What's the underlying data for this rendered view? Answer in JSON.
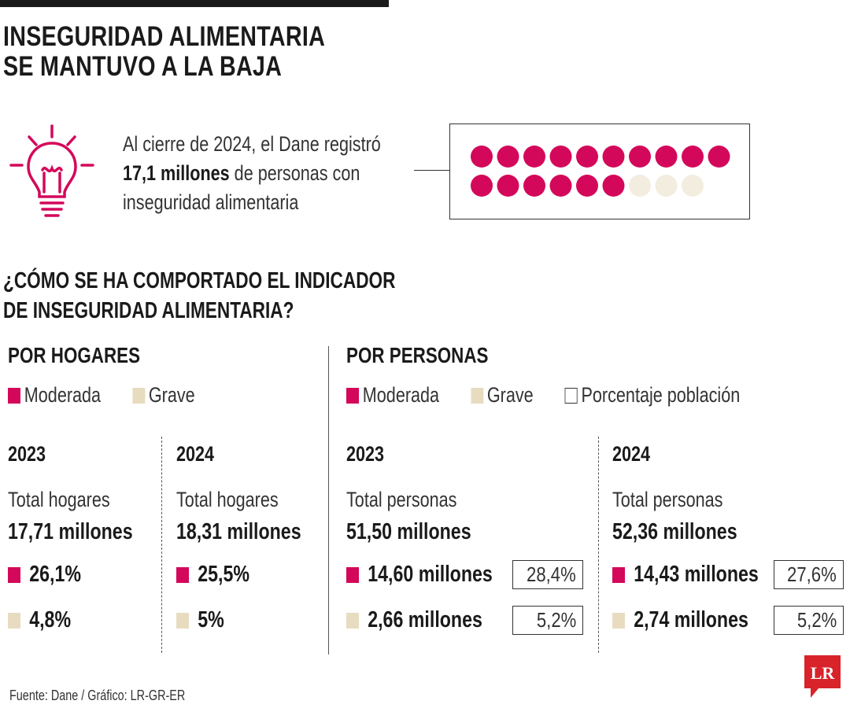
{
  "title": [
    "INSEGURIDAD ALIMENTARIA",
    "SE MANTUVO A LA BAJA"
  ],
  "intro": {
    "line1": "Al cierre de 2024, el Dane registró",
    "line2_bold": "17,1 millones",
    "line2_rest": " de personas con",
    "line3": "inseguridad alimentaria"
  },
  "question": [
    "¿CÓMO SE HA COMPORTADO EL INDICADOR",
    "DE INSEGURIDAD ALIMENTARIA?"
  ],
  "colors": {
    "moderada": "#d4085a",
    "grave": "#e8dcc0",
    "dot_empty": "#f3ede0",
    "porcentaje": "#ffffff"
  },
  "chart_data": [
    {
      "type": "pictogram",
      "description_value": 17.1,
      "filled_dots": 16,
      "total_dots": 19
    },
    {
      "type": "table",
      "title": "POR HOGARES",
      "legend": {
        "moderada": "Moderada",
        "grave": "Grave"
      },
      "years": [
        {
          "year": "2023",
          "total_label": "Total hogares",
          "total": "17,71 millones",
          "moderada": "26,1%",
          "grave": "4,8%"
        },
        {
          "year": "2024",
          "total_label": "Total hogares",
          "total": "18,31 millones",
          "moderada": "25,5%",
          "grave": "5%"
        }
      ]
    },
    {
      "type": "table",
      "title": "POR PERSONAS",
      "legend": {
        "moderada": "Moderada",
        "grave": "Grave",
        "porcentaje": "Porcentaje población"
      },
      "years": [
        {
          "year": "2023",
          "total_label": "Total personas",
          "total": "51,50 millones",
          "moderada": "14,60 millones",
          "moderada_pct": "28,4%",
          "grave": "2,66 millones",
          "grave_pct": "5,2%"
        },
        {
          "year": "2024",
          "total_label": "Total personas",
          "total": "52,36 millones",
          "moderada": "14,43 millones",
          "moderada_pct": "27,6%",
          "grave": "2,74 millones",
          "grave_pct": "5,2%"
        }
      ]
    }
  ],
  "source": "Fuente: Dane / Gráfico: LR-GR-ER",
  "logo_text": "LR"
}
